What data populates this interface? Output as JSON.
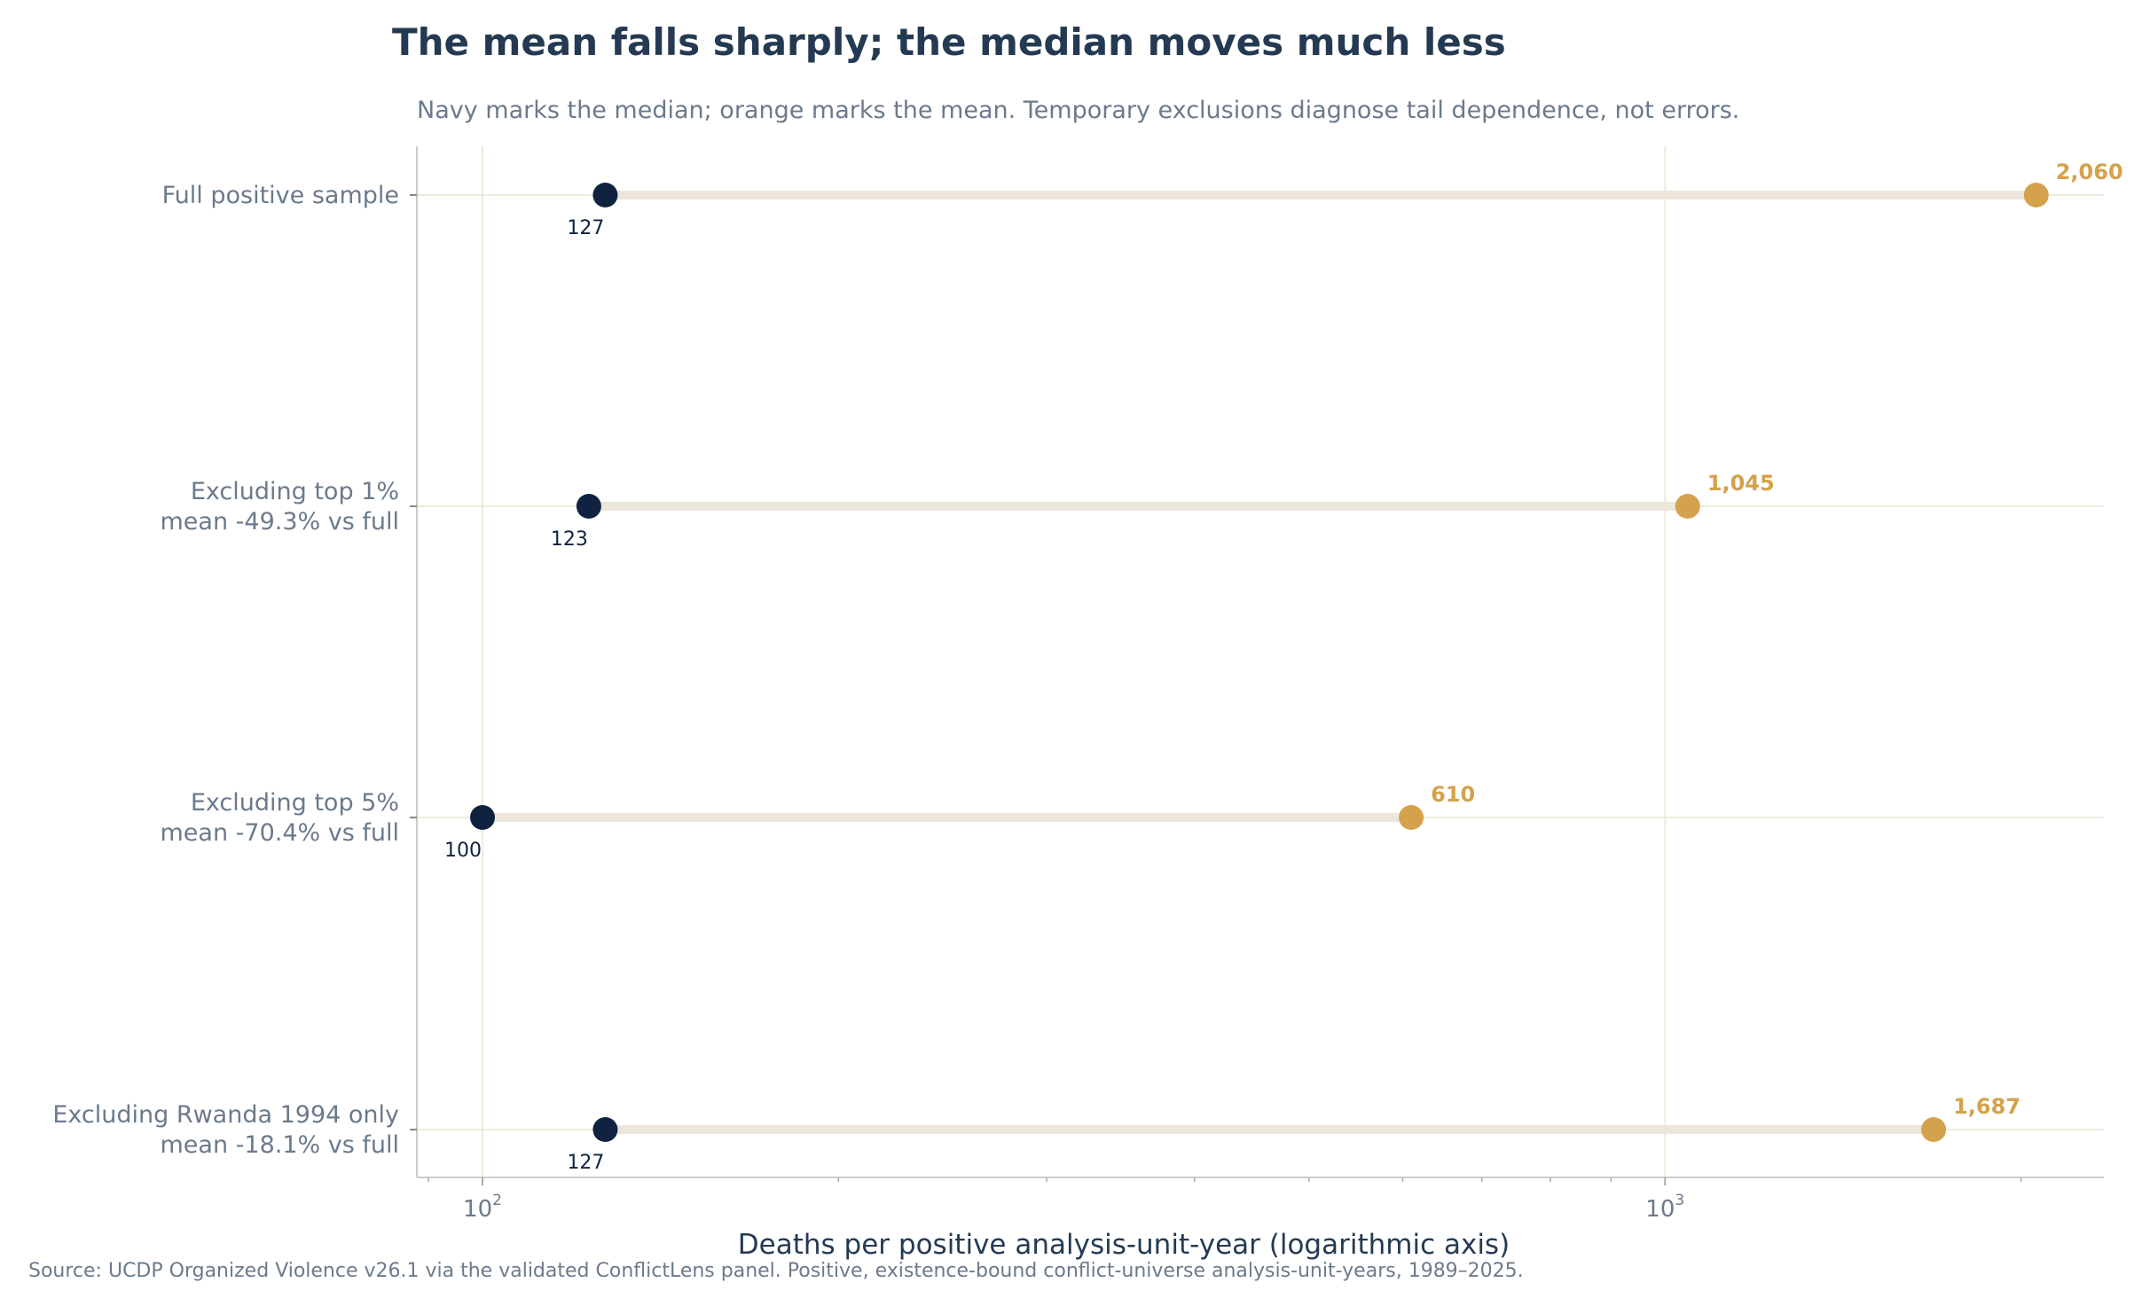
{
  "chart_data": {
    "type": "dumbbell",
    "title": "The mean falls sharply; the median moves much less",
    "subtitle": "Navy marks the median; orange marks the mean. Temporary exclusions diagnose tail dependence, not errors.",
    "xlabel": "Deaths per positive analysis-unit-year (logarithmic axis)",
    "source": "Source: UCDP Organized Violence v26.1 via the validated ConflictLens panel. Positive, existence-bound conflict-universe analysis-unit-years, 1989–2025.",
    "x_scale": "log",
    "xlim": [
      88,
      2350
    ],
    "x_ticks": [
      {
        "value": 100,
        "base": "10",
        "exp": "2"
      },
      {
        "value": 1000,
        "base": "10",
        "exp": "3"
      }
    ],
    "grid": true,
    "colors": {
      "median": "#0f2340",
      "mean": "#d4a24c",
      "connector": "#ece6db"
    },
    "series": [
      {
        "name": "median"
      },
      {
        "name": "mean"
      }
    ],
    "rows": [
      {
        "label_lines": [
          "Full positive sample"
        ],
        "median": 127,
        "mean": 2060,
        "median_label": "127",
        "mean_label": "2,060"
      },
      {
        "label_lines": [
          "Excluding top 1%",
          "mean -49.3% vs full"
        ],
        "median": 123,
        "mean": 1045,
        "median_label": "123",
        "mean_label": "1,045"
      },
      {
        "label_lines": [
          "Excluding top 5%",
          "mean -70.4% vs full"
        ],
        "median": 100,
        "mean": 610,
        "median_label": "100",
        "mean_label": "610"
      },
      {
        "label_lines": [
          "Excluding Rwanda 1994 only",
          "mean -18.1% vs full"
        ],
        "median": 127,
        "mean": 1687,
        "median_label": "127",
        "mean_label": "1,687"
      }
    ]
  }
}
